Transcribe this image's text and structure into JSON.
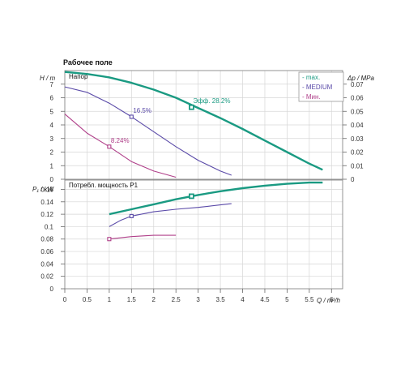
{
  "chart_data": {
    "type": "line",
    "title": "Рабочее поле",
    "legend": {
      "placement": "top-right",
      "entries": [
        "- max.",
        "- MEDIUM",
        "- Мин."
      ]
    },
    "colors": {
      "max": "#1a9a82",
      "medium": "#5a4aa8",
      "min": "#b0408a",
      "grid": "#d6d6d6",
      "frame": "#888888"
    },
    "x_axis": {
      "label": "Q / m³/h",
      "range": [
        0,
        6.25
      ],
      "ticks": [
        "0",
        "0.5",
        "1",
        "1.5",
        "2",
        "2.5",
        "3",
        "3.5",
        "4",
        "4.5",
        "5",
        "5.5",
        "6"
      ]
    },
    "head_panel": {
      "title": "Напор",
      "ylabel": "H / m",
      "y2label": "Δp / MPa",
      "ylim": [
        0,
        8
      ],
      "y2lim": [
        0,
        0.08
      ],
      "yticks": [
        "0",
        "1",
        "2",
        "3",
        "4",
        "5",
        "6",
        "7"
      ],
      "y2ticks": [
        "0",
        "0.01",
        "0.02",
        "0.03",
        "0.04",
        "0.05",
        "0.06",
        "0.07"
      ],
      "series": [
        {
          "key": "max",
          "name": "max.",
          "x": [
            0,
            0.5,
            1,
            1.5,
            2,
            2.5,
            3,
            3.5,
            4,
            4.5,
            5,
            5.5,
            5.8
          ],
          "y": [
            7.9,
            7.75,
            7.5,
            7.1,
            6.6,
            6.0,
            5.25,
            4.5,
            3.7,
            2.85,
            2.0,
            1.15,
            0.7
          ]
        },
        {
          "key": "medium",
          "name": "MEDIUM",
          "x": [
            0,
            0.5,
            1,
            1.5,
            2,
            2.5,
            3,
            3.5,
            3.75
          ],
          "y": [
            6.8,
            6.4,
            5.6,
            4.6,
            3.5,
            2.4,
            1.4,
            0.6,
            0.3
          ]
        },
        {
          "key": "min",
          "name": "Мин.",
          "x": [
            0,
            0.5,
            1,
            1.5,
            2,
            2.5
          ],
          "y": [
            4.8,
            3.4,
            2.4,
            1.3,
            0.6,
            0.15
          ]
        }
      ],
      "efficiency_points": [
        {
          "key": "max",
          "x": 2.85,
          "y": 5.3,
          "label": "Эфф.  28.2%"
        },
        {
          "key": "medium",
          "x": 1.5,
          "y": 4.6,
          "label": "16.5%"
        },
        {
          "key": "min",
          "x": 1.0,
          "y": 2.4,
          "label": "8.24%"
        }
      ]
    },
    "power_panel": {
      "title": "Потребл. мощность P1",
      "ylabel": "P₁ / kW",
      "ylim": [
        0,
        0.175
      ],
      "yticks": [
        "0",
        "0.02",
        "0.04",
        "0.06",
        "0.08",
        "0.1",
        "0.12",
        "0.14",
        "0.16"
      ],
      "series": [
        {
          "key": "max",
          "name": "max.",
          "x": [
            1.0,
            1.5,
            2.0,
            2.5,
            3.0,
            3.5,
            4.0,
            4.5,
            5.0,
            5.5,
            5.8
          ],
          "y": [
            0.12,
            0.128,
            0.136,
            0.144,
            0.151,
            0.157,
            0.162,
            0.166,
            0.169,
            0.171,
            0.171
          ]
        },
        {
          "key": "medium",
          "name": "MEDIUM",
          "x": [
            1.0,
            1.25,
            1.5,
            2.0,
            2.5,
            3.0,
            3.5,
            3.75
          ],
          "y": [
            0.1,
            0.11,
            0.117,
            0.124,
            0.128,
            0.131,
            0.135,
            0.137
          ]
        },
        {
          "key": "min",
          "name": "Мин.",
          "x": [
            1.0,
            1.25,
            1.5,
            2.0,
            2.5
          ],
          "y": [
            0.08,
            0.082,
            0.084,
            0.086,
            0.086
          ]
        }
      ],
      "markers": [
        {
          "key": "max",
          "x": 2.85,
          "y": 0.149
        },
        {
          "key": "medium",
          "x": 1.5,
          "y": 0.117
        },
        {
          "key": "min",
          "x": 1.0,
          "y": 0.08
        }
      ]
    }
  }
}
